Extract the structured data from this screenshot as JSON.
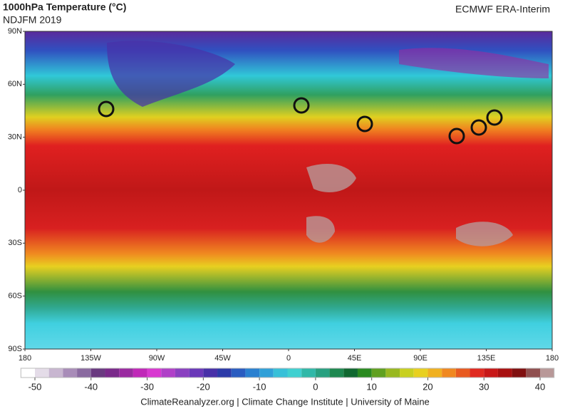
{
  "header": {
    "title": "1000hPa Temperature (°C)",
    "subtitle": "NDJFM 2019",
    "source": "ECMWF ERA-Interim"
  },
  "map": {
    "lat_ticks": [
      {
        "value": 90,
        "label": "90N"
      },
      {
        "value": 60,
        "label": "60N"
      },
      {
        "value": 30,
        "label": "30N"
      },
      0,
      {
        "value": -30,
        "label": "30S"
      },
      {
        "value": -60,
        "label": "60S"
      },
      {
        "value": -90,
        "label": "90S"
      }
    ],
    "lon_ticks": [
      {
        "value": -180,
        "label": "180"
      },
      {
        "value": -135,
        "label": "135W"
      },
      {
        "value": -90,
        "label": "90W"
      },
      {
        "value": -45,
        "label": "45W"
      },
      0,
      {
        "value": 45,
        "label": "45E"
      },
      {
        "value": 90,
        "label": "90E"
      },
      {
        "value": 135,
        "label": "135E"
      },
      180
    ]
  },
  "colorbar": {
    "lim": [
      -52.5,
      42.5
    ],
    "ticks": [
      -50,
      -40,
      -30,
      -20,
      -10,
      0,
      10,
      20,
      30,
      40
    ],
    "colors": [
      "#ffffff",
      "#e4dce8",
      "#c8b6d0",
      "#a88cb8",
      "#8a6aa0",
      "#6a3a80",
      "#7a2a8a",
      "#9a2aa0",
      "#c028b8",
      "#d838d0",
      "#b040c8",
      "#8a40c0",
      "#6a38b8",
      "#4830a8",
      "#2c3aa8",
      "#2a5cc0",
      "#2a80d0",
      "#30a0d8",
      "#38c0d8",
      "#40d0d0",
      "#30b8a8",
      "#28a080",
      "#1e8850",
      "#106830",
      "#2a8a20",
      "#60a020",
      "#98b820",
      "#c8d020",
      "#e8d020",
      "#f0b020",
      "#f08820",
      "#e85a20",
      "#e02a20",
      "#c81818",
      "#a81010",
      "#801010",
      "#905050",
      "#b89898"
    ]
  },
  "footer": "ClimateReanalyzer.org | Climate Change Institute | University of Maine"
}
